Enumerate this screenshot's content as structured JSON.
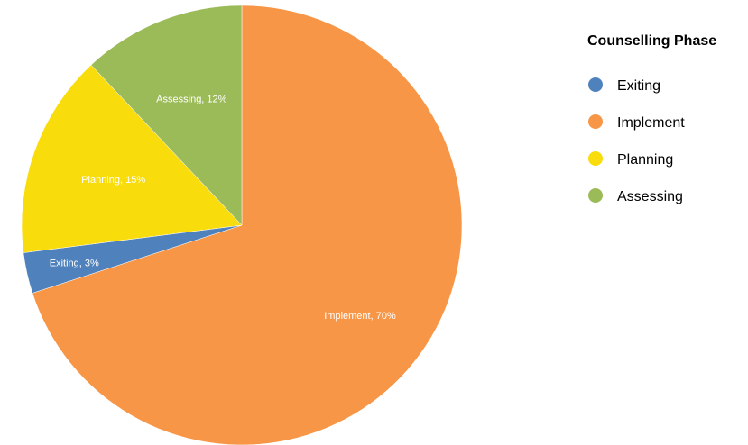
{
  "chart_data": {
    "type": "pie",
    "title": "",
    "legend_title": "Counselling Phase",
    "legend_position": "top-right",
    "slices": [
      {
        "name": "Exiting",
        "value": 3,
        "color": "#4f81bd",
        "label": "Exiting, 3%"
      },
      {
        "name": "Implement",
        "value": 70,
        "color": "#f79646",
        "label": "Implement, 70%"
      },
      {
        "name": "Planning",
        "value": 15,
        "color": "#f9dc0b",
        "label": "Planning, 15%"
      },
      {
        "name": "Assessing",
        "value": 12,
        "color": "#9bbb59",
        "label": "Assessing, 12%"
      }
    ],
    "start": "top",
    "direction": "clockwise",
    "order": [
      "Implement",
      "Exiting",
      "Planning",
      "Assessing"
    ]
  }
}
